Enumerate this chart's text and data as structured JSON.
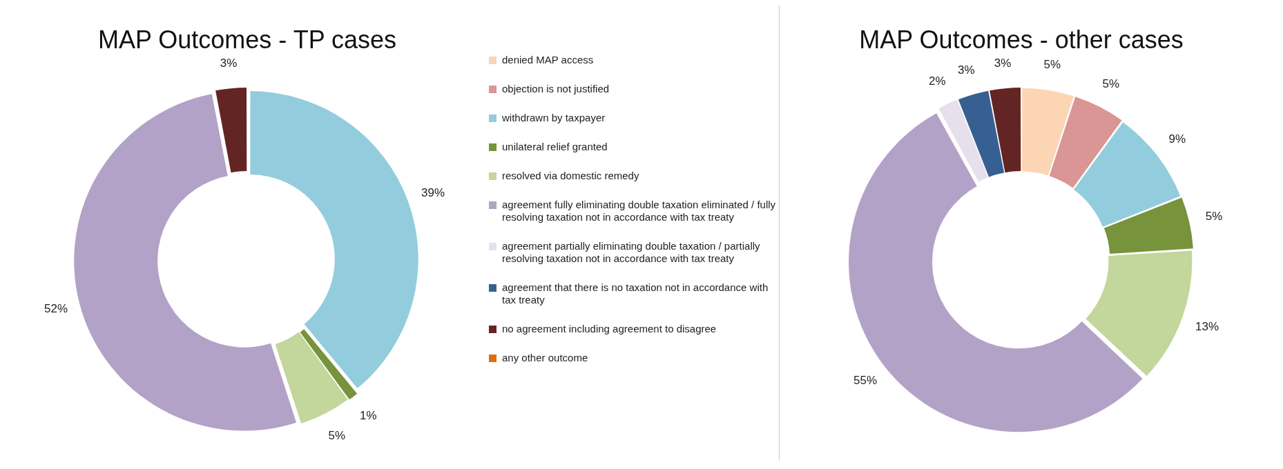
{
  "chart_data": [
    {
      "type": "donut",
      "title": "MAP Outcomes - TP cases",
      "legend": "right",
      "categories": [
        "denied MAP access",
        "objection is not justified",
        "withdrawn by taxpayer",
        "unilateral relief granted",
        "resolved via domestic remedy",
        "agreement fully eliminating double taxation eliminated / fully resolving taxation not in accordance with tax treaty",
        "agreement partially eliminating double taxation / partially resolving taxation not in accordance with tax treaty",
        "agreement that there is no taxation not in accordance with tax treaty",
        "no agreement including agreement to disagree",
        "any other outcome"
      ],
      "values": [
        0,
        0,
        39,
        1,
        5,
        52,
        0,
        0,
        3,
        0
      ],
      "value_labels": [
        null,
        null,
        "39%",
        "1%",
        "5%",
        "52%",
        null,
        null,
        "3%",
        null
      ],
      "colors": [
        "#fcd5b5",
        "#d99694",
        "#93cddd",
        "#77933c",
        "#c3d69b",
        "#b3a2c7",
        "#e6e0ec",
        "#376092",
        "#632523",
        "#e46c0a"
      ]
    },
    {
      "type": "donut",
      "title": "MAP Outcomes - other cases",
      "values": [
        5,
        5,
        9,
        5,
        13,
        55,
        2,
        3,
        3,
        0
      ],
      "value_labels": [
        "5%",
        "5%",
        "9%",
        "5%",
        "13%",
        "55%",
        "2%",
        "3%",
        "3%",
        null
      ],
      "colors": [
        "#fcd5b5",
        "#d99694",
        "#93cddd",
        "#77933c",
        "#c3d69b",
        "#b3a2c7",
        "#e6e0ec",
        "#376092",
        "#632523",
        "#e46c0a"
      ]
    }
  ]
}
